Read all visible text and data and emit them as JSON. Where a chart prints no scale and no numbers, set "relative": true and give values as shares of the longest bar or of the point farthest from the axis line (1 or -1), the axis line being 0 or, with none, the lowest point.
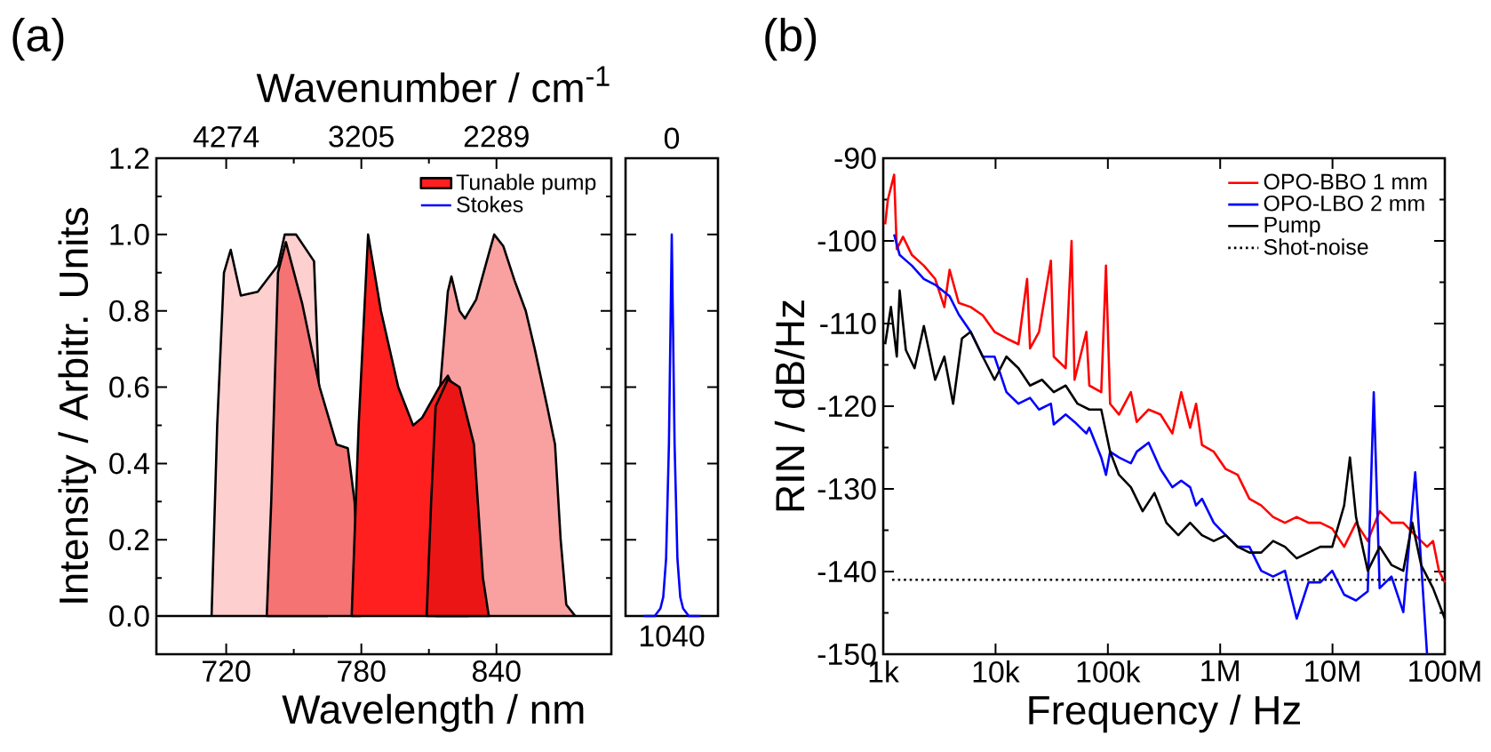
{
  "chart_data": [
    {
      "type": "area",
      "xlabel": "Wavelength / nm",
      "ylabel": "Intensity / Arbitr. Units",
      "x2label": "Wavenumber / cm$^{-1}$",
      "annotations": [
        "(a)",
        "4274",
        "3205",
        "2289"
      ],
      "legend": "top right",
      "xlim": [
        689,
        891
      ],
      "xticks": [
        720,
        780,
        840
      ],
      "ylim": [
        -0.1,
        1.2
      ],
      "yticks": [
        {
          "value": 0,
          "label": "0.0"
        },
        0.2,
        0.4,
        0.6,
        0.8,
        {
          "value": 1,
          "label": "1.0"
        },
        1.2
      ],
      "series": [
        {
          "color": "#fdcfcf",
          "x": [
            690,
            713.5,
            716,
            719,
            722,
            726.5,
            734,
            743,
            746,
            751,
            759,
            765
          ],
          "values": [
            0,
            0,
            0.5,
            0.9,
            0.96,
            0.84,
            0.85,
            0.92,
            1.0,
            1.0,
            0.93,
            0
          ]
        },
        {
          "color": "#f57373",
          "x": [
            738,
            740,
            743,
            746.5,
            753.7,
            761.5,
            769,
            774,
            777,
            779.5
          ],
          "values": [
            0,
            0.3,
            0.9,
            0.98,
            0.82,
            0.6,
            0.45,
            0.44,
            0.3,
            0
          ]
        },
        {
          "color": "#f9a0a0",
          "x": [
            813,
            815,
            818.4,
            820,
            823.6,
            826,
            831,
            836.6,
            839,
            843,
            848,
            853,
            857,
            862.5,
            866,
            868.5,
            871,
            875,
            890
          ],
          "values": [
            0,
            0.6,
            0.85,
            0.89,
            0.8,
            0.78,
            0.83,
            0.95,
            1.0,
            0.97,
            0.88,
            0.8,
            0.7,
            0.55,
            0.45,
            0.2,
            0.03,
            0,
            0
          ]
        },
        {
          "name": "Tunable pump",
          "color": "#ff1f1f",
          "x": [
            775.7,
            778.8,
            783,
            788.7,
            796.4,
            803,
            807,
            814.6,
            818.4,
            825,
            827.5
          ],
          "values": [
            0,
            0.5,
            1.0,
            0.8,
            0.6,
            0.5,
            0.52,
            0.6,
            0.63,
            0.55,
            0
          ]
        },
        {
          "color": "#ec1515",
          "x": [
            809,
            811,
            813,
            818.4,
            823.6,
            830,
            834,
            836.6
          ],
          "values": [
            0,
            0.3,
            0.55,
            0.62,
            0.6,
            0.45,
            0.1,
            0
          ]
        }
      ]
    },
    {
      "type": "line",
      "relative": true,
      "categories": [
        null,
        null,
        null,
        null,
        null,
        null,
        null,
        null,
        null,
        null,
        null,
        null,
        null,
        null,
        null,
        null,
        null,
        null,
        null,
        null,
        null
      ],
      "annotations": [
        "1040",
        "0"
      ],
      "series": [
        {
          "name": "Stokes",
          "color": "#0000ff",
          "values": [
            0,
            0,
            0,
            0,
            0,
            0.01,
            0.02,
            0.05,
            0.15,
            0.45,
            1.0,
            0.45,
            0.15,
            0.05,
            0.02,
            0.01,
            0,
            0,
            0,
            0,
            0
          ]
        }
      ]
    },
    {
      "type": "line",
      "xlabel": "Frequency / Hz",
      "ylabel": "RIN / dB/Hz",
      "annotations": [
        "(b)"
      ],
      "legend": "top right",
      "log": "x",
      "xlim": [
        1000,
        100000000
      ],
      "xticks": [
        {
          "value": 1000,
          "label": "1k"
        },
        {
          "value": 10000,
          "label": "10k"
        },
        {
          "value": 100000,
          "label": "100k"
        },
        {
          "value": 1000000,
          "label": "1M"
        },
        {
          "value": 10000000,
          "label": "10M"
        },
        {
          "value": 100000000,
          "label": "100M"
        }
      ],
      "ylim": [
        -150,
        -90
      ],
      "yticks": [
        -150,
        -140,
        -130,
        -120,
        -110,
        -100,
        -90
      ],
      "series": [
        {
          "name": "OPO-BBO 1 mm",
          "color": "#ff0000",
          "x": [
            1040,
            1100,
            1250,
            1320,
            1500,
            1800,
            2300,
            2900,
            3500,
            3900,
            4700,
            6000,
            7700,
            9800,
            12500,
            16000,
            19100,
            20300,
            24400,
            31100,
            33000,
            42100,
            47500,
            50500,
            64400,
            68400,
            87300,
            96200,
            104700,
            125600,
            160300,
            180800,
            230600,
            294000,
            375000,
            450000,
            540000,
            610000,
            689000,
            877000,
            1120000,
            1430000,
            1820000,
            2320000,
            2960000,
            3770000,
            4800000,
            6120000,
            7800000,
            9950000,
            12700000,
            16200000,
            20600000,
            26300000,
            33500000,
            42700000,
            54500000,
            69500000,
            78500000,
            88600000,
            100000000
          ],
          "values": [
            -98,
            -95,
            -92,
            -101,
            -99.5,
            -101.7,
            -103,
            -104.6,
            -108,
            -103.5,
            -107.5,
            -108,
            -109,
            -111,
            -111.8,
            -112.5,
            -104.6,
            -113,
            -111,
            -102.4,
            -114,
            -115.4,
            -100,
            -116.8,
            -111,
            -117.5,
            -118.3,
            -103,
            -119.7,
            -121,
            -118.3,
            -121.9,
            -120.4,
            -121,
            -123.3,
            -118.3,
            -122.6,
            -119.7,
            -124.7,
            -125.5,
            -127.6,
            -128.3,
            -131.2,
            -132,
            -133.4,
            -134.1,
            -133.4,
            -134.1,
            -134.1,
            -134.8,
            -137,
            -134.1,
            -136.3,
            -132.7,
            -134.1,
            -134.1,
            -135.6,
            -137,
            -136.3,
            -139.9,
            -141.3
          ]
        },
        {
          "name": "OPO-LBO 2 mm",
          "color": "#0000ff",
          "x": [
            1250,
            1400,
            1800,
            2300,
            2900,
            3900,
            4700,
            6000,
            7700,
            9800,
            12500,
            16000,
            20300,
            24400,
            31100,
            33000,
            42100,
            50500,
            64400,
            68400,
            87300,
            96200,
            104700,
            125600,
            160300,
            180800,
            230600,
            294000,
            375000,
            450000,
            540000,
            610000,
            689000,
            877000,
            1120000,
            1430000,
            1820000,
            2320000,
            2960000,
            3770000,
            4800000,
            6120000,
            7800000,
            9950000,
            12700000,
            16200000,
            20600000,
            23300000,
            26300000,
            33500000,
            42700000,
            54500000,
            69500000
          ],
          "values": [
            -99.2,
            -101.7,
            -103,
            -104.6,
            -105.3,
            -106.7,
            -108.9,
            -111,
            -114,
            -114,
            -118.3,
            -119.7,
            -119,
            -120.4,
            -119.7,
            -122.2,
            -121,
            -121.9,
            -123.3,
            -122.6,
            -126.2,
            -128.3,
            -125.5,
            -126.2,
            -126.9,
            -125.5,
            -124.4,
            -127.6,
            -129.8,
            -129,
            -129.8,
            -132,
            -131.2,
            -134.1,
            -135.6,
            -137,
            -137,
            -139.9,
            -140.6,
            -139.9,
            -145.7,
            -141.3,
            -141.3,
            -139.9,
            -142.8,
            -143.5,
            -142.4,
            -118.3,
            -142,
            -140.6,
            -144.9,
            -128,
            -150
          ]
        },
        {
          "name": "Pump",
          "color": "#000000",
          "x": [
            1040,
            1170,
            1320,
            1400,
            1590,
            1900,
            2300,
            2900,
            3500,
            4190,
            5020,
            6000,
            7700,
            9800,
            12500,
            16000,
            20300,
            25900,
            33000,
            42100,
            53700,
            68400,
            87300,
            104700,
            125600,
            160300,
            204000,
            260000,
            332000,
            424000,
            540000,
            689000,
            877000,
            1120000,
            1430000,
            1820000,
            2320000,
            2960000,
            3770000,
            4800000,
            6120000,
            7800000,
            9950000,
            12700000,
            14300000,
            16200000,
            20600000,
            26300000,
            33500000,
            42700000,
            51300000,
            61500000,
            78500000,
            100000000
          ],
          "values": [
            -112.5,
            -108,
            -114,
            -106,
            -113.2,
            -115.4,
            -110.3,
            -116.8,
            -114,
            -119.7,
            -111.8,
            -111,
            -114,
            -116.8,
            -114,
            -115.4,
            -117.5,
            -116.8,
            -118.3,
            -117.5,
            -119.7,
            -120.4,
            -120.4,
            -125.5,
            -128.3,
            -129.8,
            -132.7,
            -130.5,
            -134.1,
            -135.6,
            -134.1,
            -135.6,
            -136.3,
            -135.6,
            -137,
            -137.7,
            -137.7,
            -136.3,
            -137,
            -138.4,
            -137.7,
            -137,
            -137,
            -132,
            -126.2,
            -133.4,
            -139.9,
            -137,
            -139.2,
            -139.9,
            -134.1,
            -139.2,
            -142,
            -145.7
          ]
        },
        {
          "name": "Shot-noise",
          "color": "#000000",
          "line_style": "dotted",
          "x": [
            1200,
            100000000
          ],
          "values": [
            -141,
            -141
          ]
        }
      ]
    }
  ]
}
